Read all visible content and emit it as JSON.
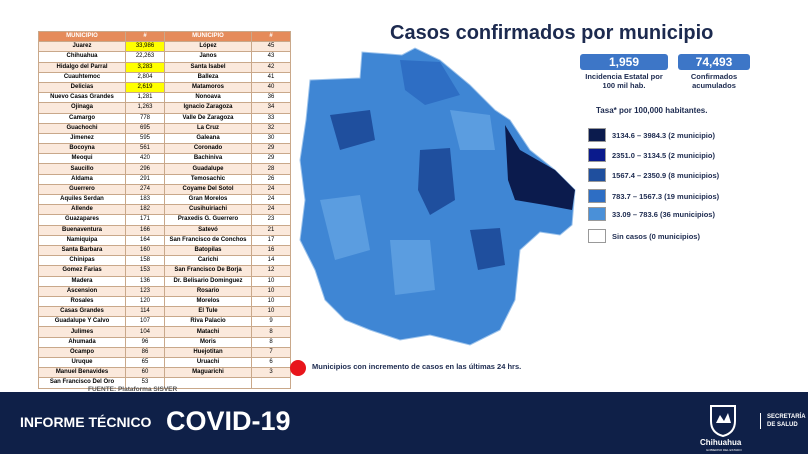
{
  "table": {
    "header": [
      "MUNICIPIO",
      "#",
      "MUNICIPIO",
      "#"
    ],
    "rows": [
      [
        "Juarez",
        {
          "text": "33,986",
          "highlight": "#ffff00"
        },
        "López",
        "45"
      ],
      [
        "Chihuahua",
        "22,263",
        "Janos",
        "43"
      ],
      [
        "Hidalgo del Parral",
        {
          "text": "3,283",
          "highlight": "#ffff00"
        },
        "Santa Isabel",
        "42"
      ],
      [
        "Cuauhtemoc",
        "2,804",
        "Balleza",
        "41"
      ],
      [
        "Delicias",
        {
          "text": "2,619",
          "highlight": "#ffff00"
        },
        "Matamoros",
        "40"
      ],
      [
        "Nuevo Casas Grandes",
        "1,281",
        "Nonoava",
        "36"
      ],
      [
        "Ojinaga",
        "1,263",
        "Ignacio Zaragoza",
        "34"
      ],
      [
        "Camargo",
        "778",
        "Valle De Zaragoza",
        "33"
      ],
      [
        "Guachochi",
        "695",
        "La Cruz",
        "32"
      ],
      [
        "Jimenez",
        "595",
        "Galeana",
        "30"
      ],
      [
        "Bocoyna",
        "561",
        "Coronado",
        "29"
      ],
      [
        "Meoqui",
        "420",
        "Bachiniva",
        "29"
      ],
      [
        "Saucillo",
        "296",
        "Guadalupe",
        "28"
      ],
      [
        "Aldama",
        "291",
        "Temosachic",
        "26"
      ],
      [
        "Guerrero",
        "274",
        "Coyame Del Sotol",
        "24"
      ],
      [
        "Aquiles Serdan",
        "183",
        "Gran Morelos",
        "24"
      ],
      [
        "Allende",
        "182",
        "Cusihuiriachi",
        "24"
      ],
      [
        "Guazapares",
        "171",
        "Praxedis G. Guerrero",
        "23"
      ],
      [
        "Buenaventura",
        "166",
        "Satevó",
        "21"
      ],
      [
        "Namiquipa",
        "164",
        "San Francisco de Conchos",
        "17"
      ],
      [
        "Santa Barbara",
        "160",
        "Batopilas",
        "16"
      ],
      [
        "Chinipas",
        "158",
        "Carichi",
        "14"
      ],
      [
        "Gomez Farias",
        "153",
        "San Francisco De Borja",
        "12"
      ],
      [
        "Madera",
        "136",
        "Dr. Belisario Dominguez",
        "10"
      ],
      [
        "Ascension",
        "123",
        "Rosario",
        "10"
      ],
      [
        "Rosales",
        "120",
        "Morelos",
        "10"
      ],
      [
        "Casas Grandes",
        "114",
        "El Tule",
        "10"
      ],
      [
        "Guadalupe Y Calvo",
        "107",
        "Riva Palacio",
        "9"
      ],
      [
        "Julimes",
        "104",
        "Matachi",
        "8"
      ],
      [
        "Ahumada",
        "96",
        "Moris",
        "8"
      ],
      [
        "Ocampo",
        "86",
        "Huejotitan",
        "7"
      ],
      [
        "Uruque",
        "65",
        "Uruachi",
        "6"
      ],
      [
        "Manuel Benavides",
        "60",
        "Maguarichi",
        "3"
      ],
      [
        "San Francisco Del Oro",
        "53"
      ]
    ]
  },
  "title": "Casos confirmados por municipio",
  "stats": [
    {
      "value": "1,959",
      "label": "Incidencia Estatal por 100 mil hab."
    },
    {
      "value": "74,493",
      "label": "Confirmados acumulados"
    }
  ],
  "rate_note": "Tasa* por 100,000 habitantes.",
  "legend": [
    {
      "label": "3134.6 – 3984.3 (2 municipio)",
      "color": "#0b1b4d"
    },
    {
      "label": "2351.0 – 3134.5 (2 municipio)",
      "color": "#0a1a8c"
    },
    {
      "label": "1567.4 – 2350.9 (8 municipios)",
      "color": "#1f4f9e"
    },
    {
      "label": "783.7 – 1567.3 (19 municipios)",
      "color": "#2e6ec4"
    },
    {
      "label": "33.09 – 783.6 (36 municipios)",
      "color": "#4a90d8"
    },
    {
      "label": "Sin casos (0 municipios)",
      "color": "#ffffff"
    }
  ],
  "increase_note": "Municipios con incremento de casos en las últimas 24 hrs.",
  "source": "FUENTE: Plataforma SISVER",
  "footer": {
    "report": "INFORME TÉCNICO",
    "topic": "COVID-19",
    "state": "Chihuahua",
    "gov": "GOBIERNO DEL ESTADO",
    "dept": "SECRETARÍA DE SALUD"
  }
}
